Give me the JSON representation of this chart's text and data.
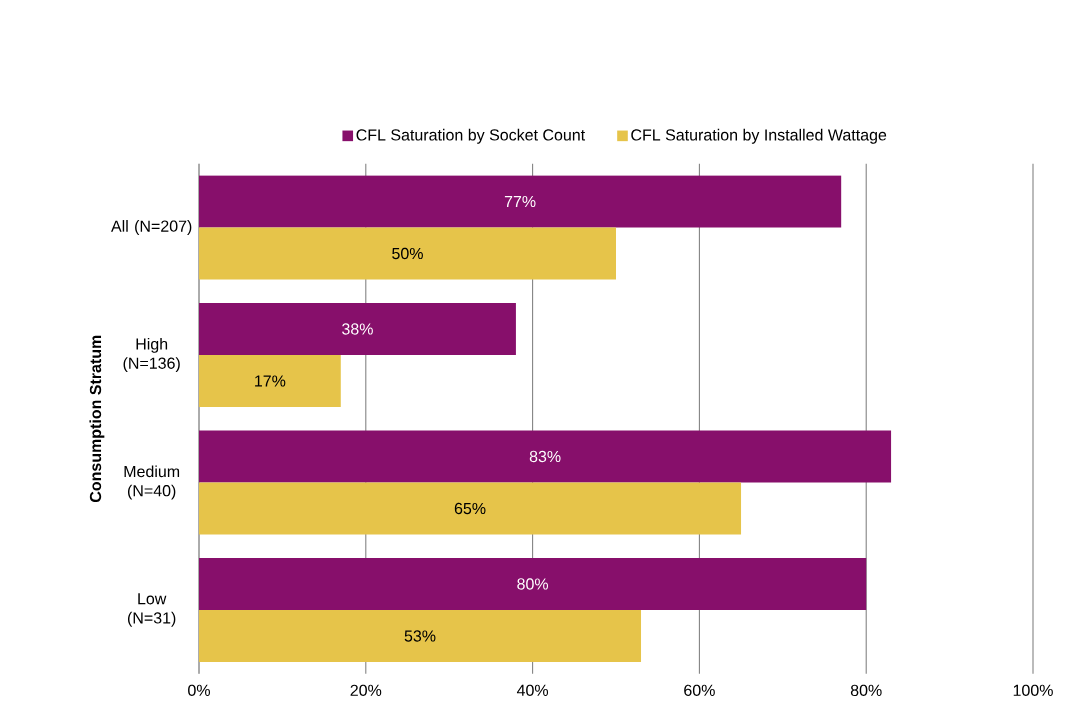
{
  "chart_data": {
    "type": "bar",
    "orientation": "horizontal",
    "ylabel": "Consumption Stratum",
    "categories": [
      "All (N=207)",
      "High (N=136)",
      "Medium (N=40)",
      "Low (N=31)"
    ],
    "series": [
      {
        "name": "CFL Saturation by Socket Count",
        "color": "#870f6b",
        "values": [
          77,
          38,
          83,
          80
        ],
        "value_labels": [
          "77%",
          "38%",
          "83%",
          "80%"
        ]
      },
      {
        "name": "CFL Saturation by Installed Wattage",
        "color": "#e6c44a",
        "values": [
          50,
          17,
          65,
          53
        ],
        "value_labels": [
          "50%",
          "17%",
          "65%",
          "53%"
        ]
      }
    ],
    "xlim": [
      0,
      100
    ],
    "xticks": [
      {
        "value": 0,
        "label": "0%"
      },
      {
        "value": 20,
        "label": "20%"
      },
      {
        "value": 40,
        "label": "40%"
      },
      {
        "value": 60,
        "label": "60%"
      },
      {
        "value": 80,
        "label": "80%"
      },
      {
        "value": 100,
        "label": "100%"
      }
    ],
    "grid": "x",
    "legend": "top"
  }
}
